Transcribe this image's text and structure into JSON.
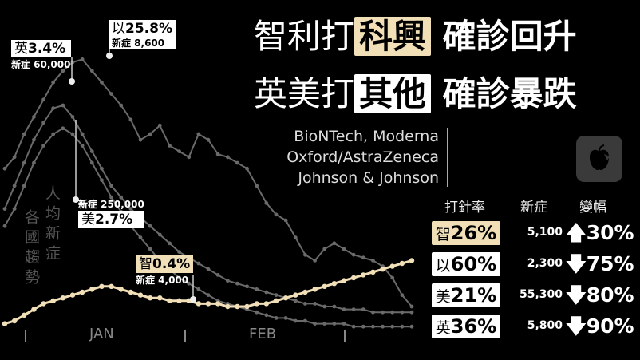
{
  "title": {
    "line1_plain": "智利打",
    "line1_boxed": "科興",
    "line1_bold": "確診回升",
    "line2_plain": "英美打",
    "line2_boxed": "其他",
    "line2_bold": "確診暴跌"
  },
  "vaccines": [
    "BioNTech, Moderna",
    "Oxford/AstraZeneca",
    "Johnson & Johnson"
  ],
  "side_label": {
    "col1": "人均新症",
    "col2": "各國趨勢"
  },
  "table": {
    "headers": {
      "rate": "打針率",
      "cases": "新症",
      "change": "變幅"
    },
    "rows": [
      {
        "country": "智",
        "rate": "26%",
        "cases": "5,100",
        "arrow": "up",
        "change": "30%"
      },
      {
        "country": "以",
        "rate": "60%",
        "cases": "2,300",
        "arrow": "down",
        "change": "75%"
      },
      {
        "country": "美",
        "rate": "21%",
        "cases": "55,300",
        "arrow": "down",
        "change": "80%"
      },
      {
        "country": "英",
        "rate": "36%",
        "cases": "5,800",
        "arrow": "down",
        "change": "90%"
      }
    ]
  },
  "annotations": {
    "uk": {
      "country": "英",
      "rate": "3.4%",
      "cases": "新症 60,000"
    },
    "israel": {
      "country": "以",
      "rate": "25.8%",
      "cases": "新症 8,600"
    },
    "us": {
      "cases": "新症 250,000",
      "country": "美",
      "rate": "2.7%"
    },
    "chile": {
      "country": "智",
      "rate": "0.4%",
      "cases": "新症 4,000"
    }
  },
  "colors": {
    "accent": "#f1dfb8",
    "series_gray": "#6a6a6a",
    "background": "#000000"
  },
  "chart_data": {
    "type": "line",
    "xlabel": "",
    "ylabel": "",
    "x_ticks": [
      "JAN",
      "FEB"
    ],
    "ylim": [
      0,
      100
    ],
    "grid": false,
    "series": [
      {
        "name": "以",
        "values": [
          58,
          62,
          70,
          76,
          82,
          88,
          92,
          95,
          96,
          92,
          88,
          84,
          80,
          75,
          68,
          70,
          73,
          66,
          64,
          62,
          70,
          68,
          63,
          62,
          60,
          58,
          52,
          46,
          42,
          40,
          34,
          28,
          26,
          30,
          32,
          30,
          28,
          27,
          26,
          24,
          20,
          14,
          10
        ]
      },
      {
        "name": "英",
        "values": [
          44,
          52,
          60,
          68,
          74,
          79,
          80,
          76,
          70,
          64,
          58,
          52,
          48,
          44,
          41,
          38,
          35,
          32,
          29,
          27,
          25,
          23,
          21,
          19,
          18,
          17,
          16,
          15,
          14,
          13,
          12,
          11,
          11,
          10,
          10,
          9,
          9,
          9,
          8,
          8,
          8,
          8,
          8
        ]
      },
      {
        "name": "美",
        "values": [
          38,
          44,
          52,
          60,
          66,
          70,
          72,
          70,
          66,
          60,
          54,
          48,
          43,
          38,
          34,
          30,
          26,
          23,
          20,
          18,
          16,
          14,
          12,
          11,
          10,
          9,
          8,
          7,
          6,
          6,
          5,
          5,
          4,
          4,
          4,
          4,
          3,
          3,
          3,
          3,
          3,
          3,
          3
        ]
      },
      {
        "name": "智",
        "values": [
          4,
          5,
          7,
          9,
          11,
          12,
          13,
          14,
          15,
          16,
          17,
          17,
          16,
          15,
          14,
          13,
          13,
          12,
          12,
          12,
          11,
          11,
          11,
          10,
          10,
          10,
          11,
          11,
          12,
          13,
          14,
          15,
          16,
          17,
          18,
          19,
          20,
          21,
          22,
          23,
          24,
          25,
          26
        ]
      }
    ]
  }
}
